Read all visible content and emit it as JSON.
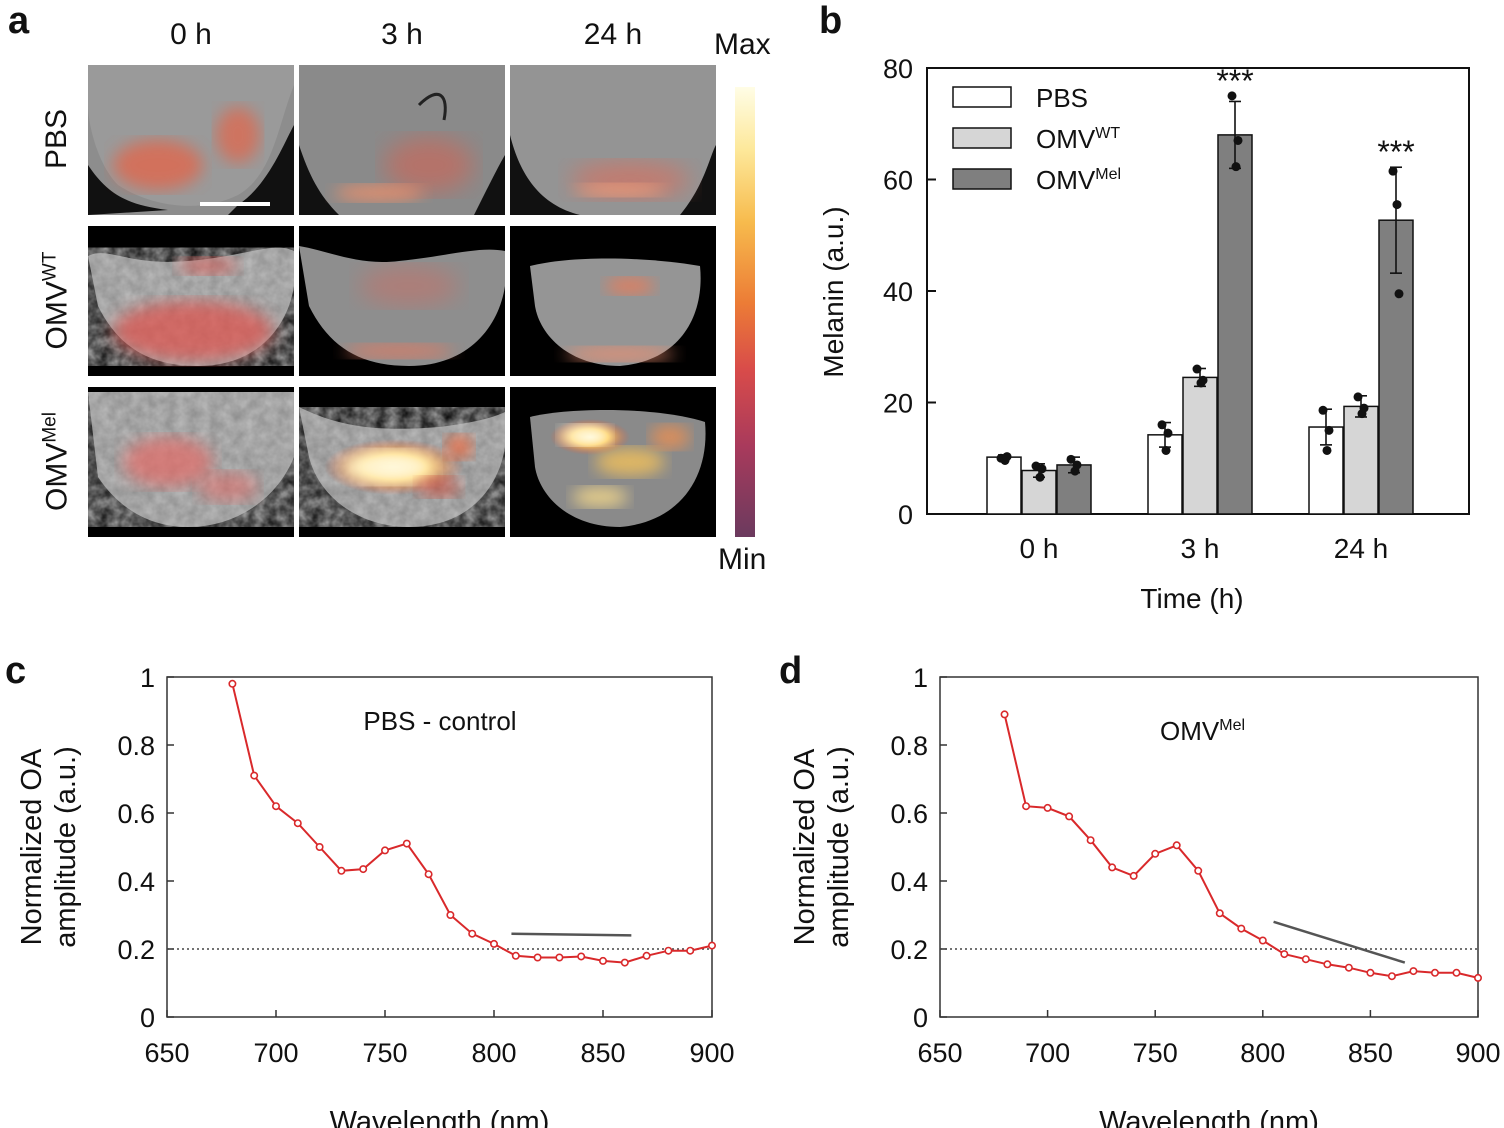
{
  "panels": {
    "a": {
      "letter": "a",
      "column_labels": [
        "0 h",
        "3 h",
        "24 h"
      ],
      "rows": [
        {
          "name": "PBS",
          "base": "PBS",
          "sup": ""
        },
        {
          "name": "OMV-WT",
          "base": "OMV",
          "sup": "WT"
        },
        {
          "name": "OMV-Mel",
          "base": "OMV",
          "sup": "Mel"
        }
      ],
      "colorbar": {
        "max_label": "Max",
        "min_label": "Min"
      }
    },
    "b_letter": "b",
    "c_letter": "c",
    "d_letter": "d"
  },
  "chart_data": [
    {
      "id": "b",
      "type": "bar",
      "categories": [
        "0 h",
        "3 h",
        "24 h"
      ],
      "xlabel": "Time (h)",
      "ylabel": "Melanin (a.u.)",
      "ylim": [
        0,
        80
      ],
      "yticks": [
        "0",
        "20",
        "40",
        "60",
        "80"
      ],
      "legend_position": "top-left",
      "series": [
        {
          "name": "PBS",
          "name_base": "PBS",
          "name_sup": "",
          "color": "#ffffff",
          "values": [
            10.2,
            14.2,
            15.6
          ],
          "errors": [
            0.4,
            2.2,
            3.2
          ],
          "points": [
            [
              10.0,
              9.6,
              10.3
            ],
            [
              16.0,
              11.4,
              14.5
            ],
            [
              18.6,
              11.4,
              15.0
            ]
          ]
        },
        {
          "name": "OMV-WT",
          "name_base": "OMV",
          "name_sup": "WT",
          "color": "#d6d6d6",
          "values": [
            7.8,
            24.5,
            19.3
          ],
          "errors": [
            1.2,
            1.6,
            1.9
          ],
          "points": [
            [
              8.6,
              6.6,
              8.1
            ],
            [
              26.0,
              23.5,
              24.0
            ],
            [
              21.0,
              18.0,
              19.0
            ]
          ]
        },
        {
          "name": "OMV-Mel",
          "name_base": "OMV",
          "name_sup": "Mel",
          "color": "#7f7f7f",
          "values": [
            8.8,
            68.0,
            52.7
          ],
          "errors": [
            1.4,
            6.0,
            9.5
          ],
          "points": [
            [
              9.8,
              7.7,
              8.8
            ],
            [
              75.0,
              62.3,
              67.0
            ],
            [
              61.5,
              55.5,
              39.5
            ]
          ]
        }
      ],
      "annotations": [
        {
          "text": "***",
          "category": "3 h",
          "series": "OMV-Mel"
        },
        {
          "text": "***",
          "category": "24 h",
          "series": "OMV-Mel"
        }
      ]
    },
    {
      "id": "c",
      "type": "line",
      "title": "PBS - control",
      "title_base": "PBS - control",
      "title_sup": "",
      "xlabel": "Wavelength (nm)",
      "ylabel_line1": "Normalized OA",
      "ylabel_line2": "amplitude (a.u.)",
      "xlim": [
        650,
        900
      ],
      "ylim": [
        0,
        1
      ],
      "xticks": [
        "650",
        "700",
        "750",
        "800",
        "850",
        "900"
      ],
      "yticks": [
        "0",
        "0.2",
        "0.4",
        "0.6",
        "0.8",
        "1"
      ],
      "reference_y": 0.2,
      "slope_line": [
        [
          808,
          0.245
        ],
        [
          863,
          0.24
        ]
      ],
      "color": "#d9292b",
      "x": [
        680,
        690,
        700,
        710,
        720,
        730,
        740,
        750,
        760,
        770,
        780,
        790,
        800,
        810,
        820,
        830,
        840,
        850,
        860,
        870,
        880,
        890,
        900
      ],
      "y": [
        0.98,
        0.71,
        0.62,
        0.57,
        0.5,
        0.43,
        0.435,
        0.49,
        0.51,
        0.42,
        0.3,
        0.245,
        0.215,
        0.18,
        0.175,
        0.175,
        0.178,
        0.165,
        0.16,
        0.18,
        0.195,
        0.195,
        0.21
      ]
    },
    {
      "id": "d",
      "type": "line",
      "title": "OMV-Mel",
      "title_base": "OMV",
      "title_sup": "Mel",
      "xlabel": "Wavelength (nm)",
      "ylabel_line1": "Normalized OA",
      "ylabel_line2": "amplitude (a.u.)",
      "xlim": [
        650,
        900
      ],
      "ylim": [
        0,
        1
      ],
      "xticks": [
        "650",
        "700",
        "750",
        "800",
        "850",
        "900"
      ],
      "yticks": [
        "0",
        "0.2",
        "0.4",
        "0.6",
        "0.8",
        "1"
      ],
      "reference_y": 0.2,
      "slope_line": [
        [
          805,
          0.28
        ],
        [
          866,
          0.16
        ]
      ],
      "color": "#d9292b",
      "x": [
        680,
        690,
        700,
        710,
        720,
        730,
        740,
        750,
        760,
        770,
        780,
        790,
        800,
        810,
        820,
        830,
        840,
        850,
        860,
        870,
        880,
        890,
        900
      ],
      "y": [
        0.89,
        0.62,
        0.615,
        0.59,
        0.52,
        0.44,
        0.415,
        0.48,
        0.505,
        0.43,
        0.305,
        0.26,
        0.225,
        0.185,
        0.17,
        0.155,
        0.145,
        0.13,
        0.12,
        0.135,
        0.13,
        0.13,
        0.115
      ]
    }
  ]
}
